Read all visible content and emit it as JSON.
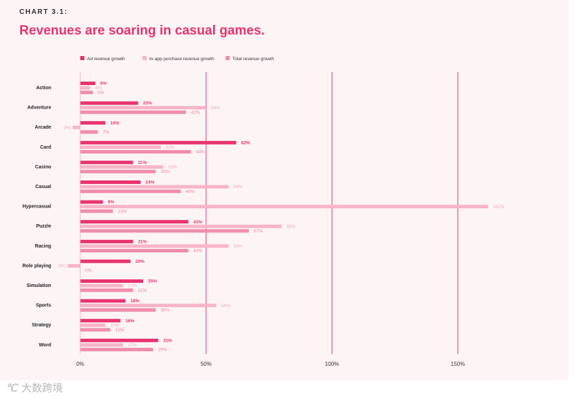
{
  "header": {
    "kicker": "CHART 3.1:",
    "title": "Revenues are soaring in casual games."
  },
  "watermark": {
    "logo": "℃",
    "text": "大数跨境"
  },
  "chart_data": {
    "type": "bar",
    "orientation": "horizontal",
    "categories": [
      "Action",
      "Adventure",
      "Arcade",
      "Card",
      "Casino",
      "Casual",
      "Hypercasual",
      "Puzzle",
      "Racing",
      "Role playing",
      "Simulation",
      "Sports",
      "Strategy",
      "Word"
    ],
    "series": [
      {
        "name": "Ad revenue growth",
        "color": "#e8336f",
        "labelColor": "#e8336f",
        "values": [
          6,
          23,
          10,
          62,
          21,
          24,
          9,
          43,
          21,
          20,
          25,
          18,
          16,
          31
        ]
      },
      {
        "name": "In-app purchase revenue growth",
        "color": "#f8b5c8",
        "labelColor": "#f4a7bd",
        "values": [
          4,
          50,
          -3,
          32,
          33,
          59,
          162,
          80,
          59,
          -5,
          17,
          54,
          10,
          17
        ]
      },
      {
        "name": "Total revenue growth",
        "color": "#f08dab",
        "labelColor": "#ee7fa0",
        "values": [
          5,
          42,
          7,
          44,
          30,
          40,
          13,
          67,
          43,
          0,
          21,
          30,
          12,
          29
        ]
      }
    ],
    "value_suffix": "%",
    "xlim": [
      0,
      160
    ],
    "xticks": [
      0,
      50,
      100,
      150
    ],
    "xtick_labels": [
      "0%",
      "50%",
      "100%",
      "150%"
    ],
    "grid": true,
    "legend_position": "top-left"
  }
}
